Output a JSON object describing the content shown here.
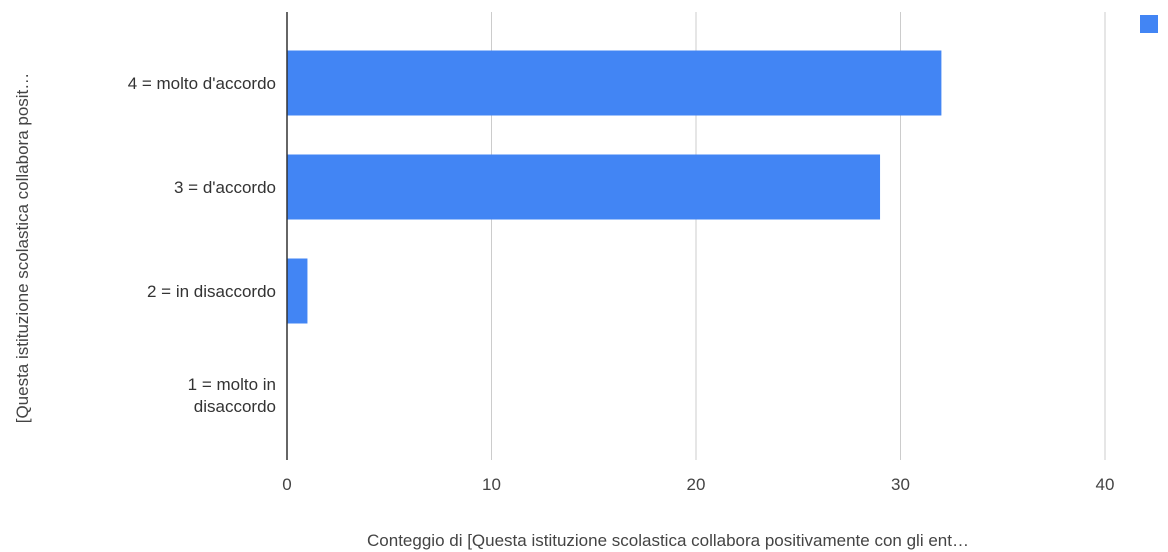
{
  "chart_data": {
    "type": "bar",
    "orientation": "horizontal",
    "categories": [
      "4 = molto d'accordo",
      "3 = d'accordo",
      "2 = in disaccordo",
      "1 = molto in disaccordo"
    ],
    "category_lines": [
      [
        "4 = molto d'accordo"
      ],
      [
        "3 = d'accordo"
      ],
      [
        "2 = in disaccordo"
      ],
      [
        "1 = molto in",
        "disaccordo"
      ]
    ],
    "series": [
      {
        "values": [
          32,
          29,
          1,
          0
        ],
        "color": "#4285f4"
      }
    ],
    "xlabel": "Conteggio di  [Questa istituzione scolastica collabora positivamente con gli ent…",
    "ylabel": "[Questa istituzione scolastica collabora posit…",
    "xlim": [
      0,
      40
    ],
    "xticks": [
      0,
      10,
      20,
      30,
      40
    ],
    "grid": true,
    "legend": "top-right"
  }
}
